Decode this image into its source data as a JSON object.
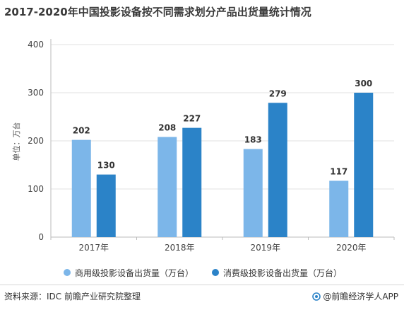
{
  "title": "2017-2020年中国投影设备按不同需求划分产品出货量统计情况",
  "source": "资料来源：IDC 前瞻产业研究院整理",
  "brand": "@前瞻经济学人APP",
  "colors": {
    "commercial": "#7cb6e9",
    "consumer": "#2b83c8",
    "axis": "#bbbbbb",
    "grid": "#e2e2e2"
  },
  "chart_data": {
    "type": "bar",
    "categories": [
      "2017年",
      "2018年",
      "2019年",
      "2020年"
    ],
    "series": [
      {
        "name": "商用级投影设备出货量（万台）",
        "values": [
          202,
          208,
          183,
          117
        ]
      },
      {
        "name": "消费级投影设备出货量（万台）",
        "values": [
          130,
          227,
          279,
          300
        ]
      }
    ],
    "ylabel": "单位：万台",
    "ylim": [
      0,
      400
    ],
    "yticks": [
      0,
      100,
      200,
      300,
      400
    ],
    "grid": true,
    "legend_position": "bottom"
  }
}
